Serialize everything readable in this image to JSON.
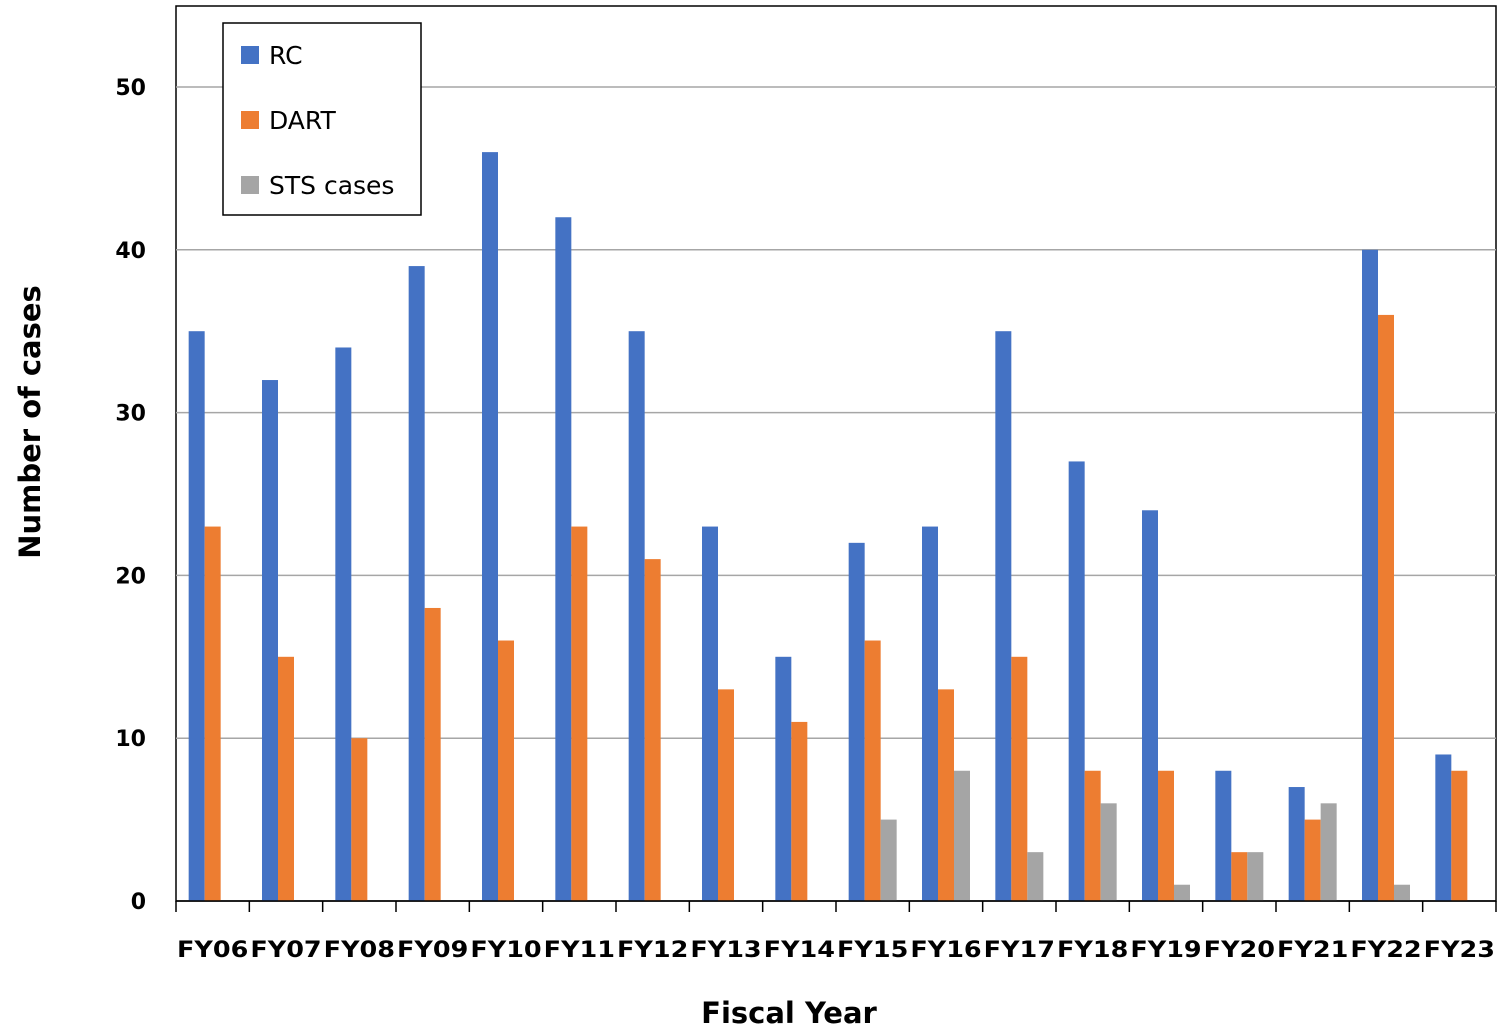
{
  "chart_data": {
    "type": "bar",
    "xlabel": "Fiscal Year",
    "ylabel": "Number of cases",
    "ylim": [
      0,
      55
    ],
    "yticks": [
      0,
      10,
      20,
      30,
      40,
      50
    ],
    "grid": "horizontal",
    "legend_position": "top-left",
    "categories": [
      "FY06",
      "FY07",
      "FY08",
      "FY09",
      "FY10",
      "FY11",
      "FY12",
      "FY13",
      "FY14",
      "FY15",
      "FY16",
      "FY17",
      "FY18",
      "FY19",
      "FY20",
      "FY21",
      "FY22",
      "FY23"
    ],
    "series": [
      {
        "name": "RC",
        "color": "#4472C4",
        "values": [
          35,
          32,
          34,
          39,
          46,
          42,
          35,
          23,
          15,
          22,
          23,
          35,
          27,
          24,
          8,
          7,
          40,
          9
        ]
      },
      {
        "name": "DART",
        "color": "#ED7D31",
        "values": [
          23,
          15,
          10,
          18,
          16,
          23,
          21,
          13,
          11,
          16,
          13,
          15,
          8,
          8,
          3,
          5,
          36,
          8
        ]
      },
      {
        "name": "STS cases",
        "color": "#A5A5A5",
        "values": [
          0,
          0,
          0,
          0,
          0,
          0,
          0,
          0,
          0,
          5,
          8,
          3,
          6,
          1,
          3,
          6,
          1,
          0
        ]
      }
    ]
  }
}
